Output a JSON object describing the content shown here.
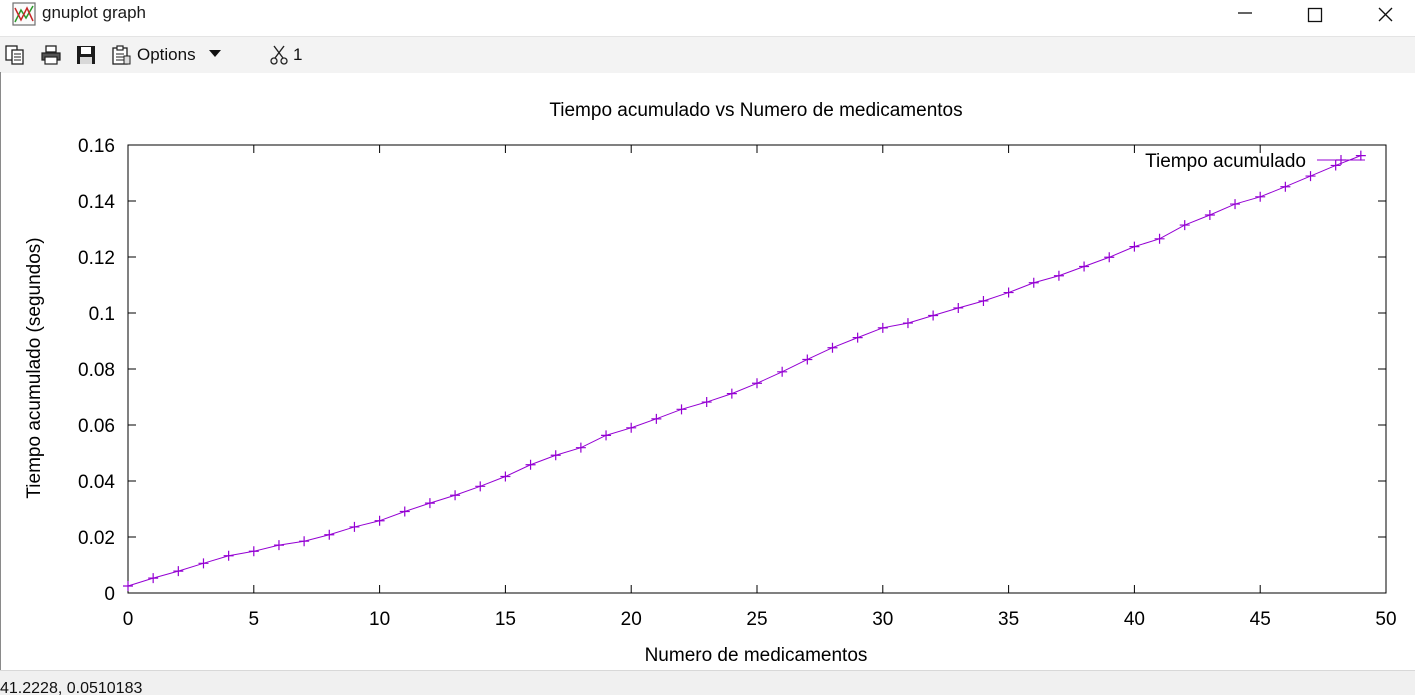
{
  "window": {
    "title": "gnuplot graph"
  },
  "toolbar": {
    "options_label": "Options",
    "plot_number": "1"
  },
  "statusbar": {
    "coordinates": "41.2228, 0.0510183"
  },
  "colors": {
    "series": "#9400d3",
    "axis": "#000000",
    "background": "#ffffff"
  },
  "icons": [
    "graph-icon",
    "copy-icon",
    "print-icon",
    "save-icon",
    "options-icon",
    "scissors-icon"
  ],
  "chart_data": {
    "type": "line",
    "title": "Tiempo acumulado vs Numero de medicamentos",
    "xlabel": "Numero de medicamentos",
    "ylabel": "Tiempo acumulado (segundos)",
    "xlim": [
      0,
      50
    ],
    "ylim": [
      0,
      0.16
    ],
    "x_ticks": [
      "0",
      "5",
      "10",
      "15",
      "20",
      "25",
      "30",
      "35",
      "40",
      "45",
      "50"
    ],
    "y_ticks": [
      "0",
      "0.02",
      "0.04",
      "0.06",
      "0.08",
      "0.1",
      "0.12",
      "0.14",
      "0.16"
    ],
    "grid": false,
    "legend_position": "top-right",
    "series": [
      {
        "name": "Tiempo acumulado",
        "marker": "+",
        "x": [
          0,
          1,
          2,
          3,
          4,
          5,
          6,
          7,
          8,
          9,
          10,
          11,
          12,
          13,
          14,
          15,
          16,
          17,
          18,
          19,
          20,
          21,
          22,
          23,
          24,
          25,
          26,
          27,
          28,
          29,
          30,
          31,
          32,
          33,
          34,
          35,
          36,
          37,
          38,
          39,
          40,
          41,
          42,
          43,
          44,
          45,
          46,
          47,
          48,
          49
        ],
        "y": [
          0.0025,
          0.0053,
          0.0078,
          0.0106,
          0.0133,
          0.0149,
          0.0171,
          0.0185,
          0.0208,
          0.0236,
          0.0258,
          0.0291,
          0.0321,
          0.0349,
          0.0381,
          0.0416,
          0.0458,
          0.0492,
          0.0519,
          0.0563,
          0.059,
          0.0622,
          0.0656,
          0.0682,
          0.0712,
          0.0749,
          0.079,
          0.0834,
          0.0876,
          0.0912,
          0.0947,
          0.0964,
          0.0991,
          0.1018,
          0.1043,
          0.1073,
          0.1108,
          0.1133,
          0.1166,
          0.1199,
          0.1237,
          0.1265,
          0.1314,
          0.135,
          0.1389,
          0.1415,
          0.1451,
          0.1489,
          0.1527,
          0.1562
        ]
      }
    ]
  }
}
